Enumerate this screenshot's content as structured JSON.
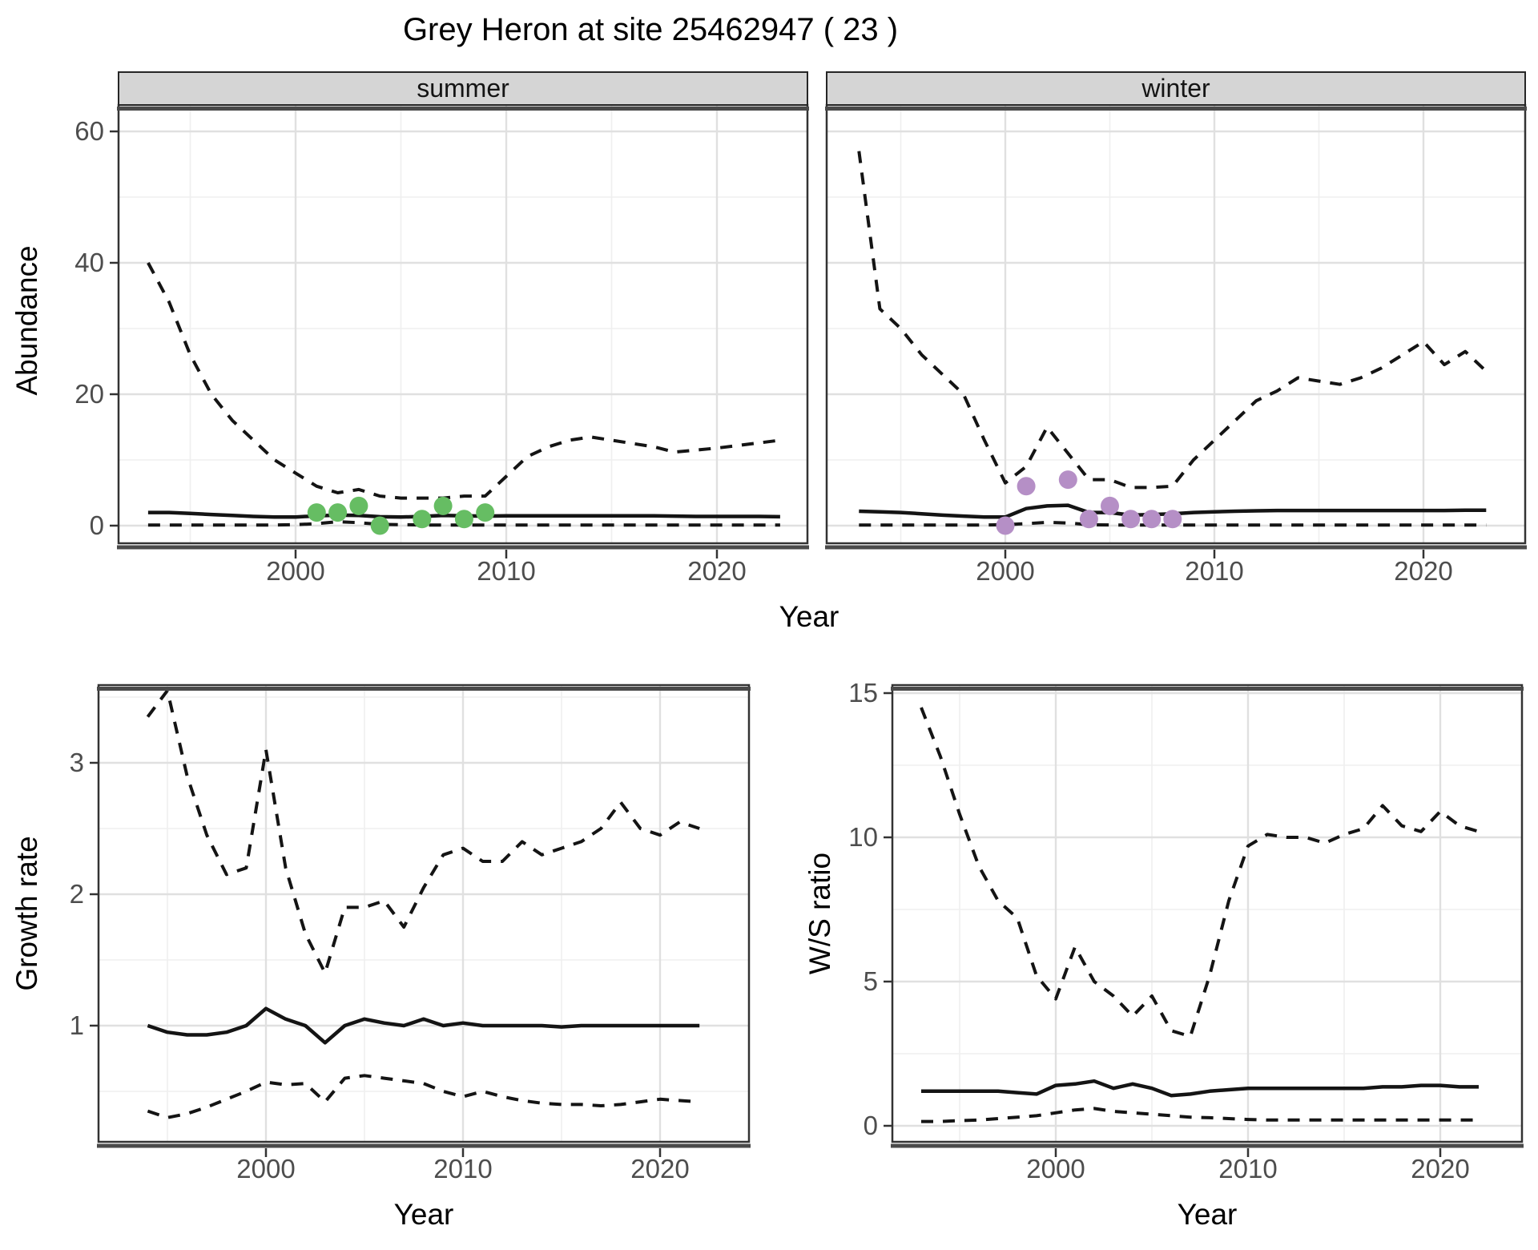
{
  "title": "Grey Heron at site 25462947 ( 23 )",
  "axes": {
    "year_label": "Year",
    "abundance_label": "Abundance",
    "growth_label": "Growth rate",
    "ws_label": "W/S ratio"
  },
  "colors": {
    "line": "#141414",
    "summer_points": "#66bd63",
    "winter_points": "#b58fc6",
    "strip_fill": "#d5d5d5",
    "grid_major": "#e0e0e0",
    "grid_minor": "#efefef"
  },
  "chart_data": [
    {
      "id": "abundance_summer",
      "type": "line",
      "facet_label": "summer",
      "xlabel": "Year",
      "ylabel": "Abundance",
      "x_range": [
        1991.6,
        2024.3
      ],
      "y_range": [
        -1,
        64
      ],
      "grid": true,
      "x_ticks": [
        2000,
        2010,
        2020
      ],
      "x_tick_labels": [
        "2000",
        "2010",
        "2020"
      ],
      "x_minor": [
        1995,
        2005,
        2015
      ],
      "y_ticks": [
        0,
        20,
        40,
        60
      ],
      "y_tick_labels": [
        "0",
        "20",
        "40",
        "60"
      ],
      "y_minor": [
        10,
        30,
        50
      ],
      "x": [
        1993,
        1994,
        1995,
        1996,
        1997,
        1998,
        1999,
        2000,
        2001,
        2002,
        2003,
        2004,
        2005,
        2006,
        2007,
        2008,
        2009,
        2010,
        2011,
        2012,
        2013,
        2014,
        2015,
        2016,
        2017,
        2018,
        2019,
        2020,
        2021,
        2022,
        2023
      ],
      "series": [
        {
          "name": "upper_ci",
          "style": "dashed",
          "y": [
            40,
            34,
            26,
            20,
            16,
            13,
            10,
            8,
            6,
            5,
            5.5,
            4.5,
            4.2,
            4.2,
            4.2,
            4.5,
            4.5,
            7.5,
            10.5,
            12,
            13,
            13.5,
            13,
            12.5,
            12,
            11.2,
            11.5,
            11.8,
            12.2,
            12.6,
            13
          ]
        },
        {
          "name": "estimate",
          "style": "solid",
          "y": [
            2,
            2,
            1.85,
            1.7,
            1.55,
            1.4,
            1.3,
            1.3,
            1.5,
            1.6,
            1.55,
            1.35,
            1.3,
            1.4,
            1.55,
            1.5,
            1.45,
            1.5,
            1.5,
            1.5,
            1.5,
            1.5,
            1.5,
            1.5,
            1.5,
            1.45,
            1.4,
            1.4,
            1.4,
            1.4,
            1.35
          ]
        },
        {
          "name": "lower_ci",
          "style": "dashed",
          "y": [
            0.1,
            0.1,
            0.1,
            0.1,
            0.1,
            0.1,
            0.1,
            0.15,
            0.3,
            0.6,
            0.45,
            0.2,
            0.15,
            0.1,
            0.1,
            0.1,
            0.1,
            0.1,
            0.1,
            0.1,
            0.1,
            0.1,
            0.1,
            0.1,
            0.1,
            0.1,
            0.1,
            0.1,
            0.1,
            0.1,
            0.1
          ]
        }
      ],
      "observations": {
        "name": "counts",
        "color": "#66bd63",
        "x": [
          2001,
          2002,
          2003,
          2004,
          2006,
          2007,
          2008,
          2009
        ],
        "y": [
          2,
          2,
          3,
          0,
          1,
          3,
          1,
          2
        ]
      }
    },
    {
      "id": "abundance_winter",
      "type": "line",
      "facet_label": "winter",
      "xlabel": "Year",
      "ylabel": "Abundance",
      "x_range": [
        1991.6,
        2024.3
      ],
      "y_range": [
        -1,
        64
      ],
      "grid": true,
      "x_ticks": [
        2000,
        2010,
        2020
      ],
      "x_tick_labels": [
        "2000",
        "2010",
        "2020"
      ],
      "x_minor": [
        1995,
        2005,
        2015
      ],
      "y_ticks": [
        0,
        20,
        40,
        60
      ],
      "y_tick_labels": [
        "0",
        "20",
        "40",
        "60"
      ],
      "y_minor": [
        10,
        30,
        50
      ],
      "x": [
        1993,
        1994,
        1995,
        1996,
        1997,
        1998,
        1999,
        2000,
        2001,
        2002,
        2003,
        2004,
        2005,
        2006,
        2007,
        2008,
        2009,
        2010,
        2011,
        2012,
        2013,
        2014,
        2015,
        2016,
        2017,
        2018,
        2019,
        2020,
        2021,
        2022,
        2023
      ],
      "series": [
        {
          "name": "upper_ci",
          "style": "dashed",
          "y": [
            57,
            33,
            30,
            26,
            23,
            20,
            13,
            6.5,
            9,
            15,
            11,
            7,
            7,
            5.8,
            5.8,
            6,
            10,
            13,
            16,
            19,
            20.5,
            22.5,
            22,
            21.5,
            22.5,
            24,
            26,
            28,
            24.5,
            26.5,
            23.5
          ]
        },
        {
          "name": "estimate",
          "style": "solid",
          "y": [
            2.2,
            2.1,
            2,
            1.8,
            1.6,
            1.45,
            1.3,
            1.3,
            2.6,
            3,
            3.1,
            2,
            2,
            1.6,
            1.7,
            1.8,
            2,
            2.1,
            2.2,
            2.25,
            2.3,
            2.3,
            2.3,
            2.3,
            2.3,
            2.3,
            2.3,
            2.3,
            2.3,
            2.35,
            2.35
          ]
        },
        {
          "name": "lower_ci",
          "style": "dashed",
          "y": [
            0.1,
            0.1,
            0.1,
            0.1,
            0.1,
            0.1,
            0.1,
            0.15,
            0.3,
            0.5,
            0.4,
            0.15,
            0.1,
            0.1,
            0.1,
            0.1,
            0.1,
            0.1,
            0.1,
            0.1,
            0.1,
            0.1,
            0.1,
            0.1,
            0.1,
            0.1,
            0.1,
            0.1,
            0.1,
            0.1,
            0.1
          ]
        }
      ],
      "observations": {
        "name": "counts",
        "color": "#b58fc6",
        "x": [
          2000,
          2001,
          2003,
          2004,
          2005,
          2006,
          2007,
          2008
        ],
        "y": [
          0,
          6,
          7,
          1,
          3,
          1,
          1,
          1
        ]
      }
    },
    {
      "id": "growth_rate",
      "type": "line",
      "facet_label": null,
      "xlabel": "Year",
      "ylabel": "Growth rate",
      "x_range": [
        1991.5,
        2024.5
      ],
      "y_range": [
        0.12,
        3.59
      ],
      "grid": true,
      "x_ticks": [
        2000,
        2010,
        2020
      ],
      "x_tick_labels": [
        "2000",
        "2010",
        "2020"
      ],
      "x_minor": [
        1995,
        2005,
        2015
      ],
      "y_ticks": [
        1,
        2,
        3
      ],
      "y_tick_labels": [
        "1",
        "2",
        "3"
      ],
      "y_minor": [
        0.5,
        1.5,
        2.5,
        3.5
      ],
      "x": [
        1994,
        1995,
        1996,
        1997,
        1998,
        1999,
        2000,
        2001,
        2002,
        2003,
        2004,
        2005,
        2006,
        2007,
        2008,
        2009,
        2010,
        2011,
        2012,
        2013,
        2014,
        2015,
        2016,
        2017,
        2018,
        2019,
        2020,
        2021,
        2022
      ],
      "series": [
        {
          "name": "upper_ci",
          "style": "dashed",
          "y": [
            3.35,
            3.55,
            2.9,
            2.45,
            2.15,
            2.2,
            3.1,
            2.2,
            1.7,
            1.4,
            1.9,
            1.9,
            1.95,
            1.75,
            2.05,
            2.3,
            2.35,
            2.25,
            2.25,
            2.4,
            2.3,
            2.35,
            2.4,
            2.5,
            2.7,
            2.5,
            2.45,
            2.55,
            2.5
          ]
        },
        {
          "name": "estimate",
          "style": "solid",
          "y": [
            1,
            0.95,
            0.93,
            0.93,
            0.95,
            1,
            1.13,
            1.05,
            1,
            0.87,
            1,
            1.05,
            1.02,
            1,
            1.05,
            1,
            1.02,
            1,
            1,
            1,
            1,
            0.99,
            1,
            1,
            1,
            1,
            1,
            1,
            1
          ]
        },
        {
          "name": "lower_ci",
          "style": "dashed",
          "y": [
            0.35,
            0.3,
            0.33,
            0.38,
            0.44,
            0.5,
            0.57,
            0.55,
            0.56,
            0.42,
            0.6,
            0.62,
            0.6,
            0.58,
            0.56,
            0.5,
            0.46,
            0.5,
            0.46,
            0.43,
            0.41,
            0.4,
            0.4,
            0.39,
            0.4,
            0.42,
            0.44,
            0.43,
            0.42
          ]
        }
      ],
      "observations": null
    },
    {
      "id": "ws_ratio",
      "type": "line",
      "facet_label": null,
      "xlabel": "Year",
      "ylabel": "W/S ratio",
      "x_range": [
        1991.6,
        2024.4
      ],
      "y_range": [
        -0.55,
        15.3
      ],
      "grid": true,
      "x_ticks": [
        2000,
        2010,
        2020
      ],
      "x_tick_labels": [
        "2000",
        "2010",
        "2020"
      ],
      "x_minor": [
        1995,
        2005,
        2015
      ],
      "y_ticks": [
        0,
        5,
        10,
        15
      ],
      "y_tick_labels": [
        "0",
        "5",
        "10",
        "15"
      ],
      "y_minor": [
        2.5,
        7.5,
        12.5
      ],
      "x": [
        1993,
        1994,
        1995,
        1996,
        1997,
        1998,
        1999,
        2000,
        2001,
        2002,
        2003,
        2004,
        2005,
        2006,
        2007,
        2008,
        2009,
        2010,
        2011,
        2012,
        2013,
        2014,
        2015,
        2016,
        2017,
        2018,
        2019,
        2020,
        2021,
        2022
      ],
      "series": [
        {
          "name": "upper_ci",
          "style": "dashed",
          "y": [
            14.5,
            12.8,
            10.8,
            9,
            7.8,
            7.2,
            5.2,
            4.4,
            6.2,
            5,
            4.5,
            3.8,
            4.5,
            3.3,
            3.1,
            5.2,
            7.8,
            9.7,
            10.1,
            10,
            10,
            9.8,
            10.1,
            10.3,
            11.1,
            10.4,
            10.2,
            10.9,
            10.4,
            10.2
          ]
        },
        {
          "name": "estimate",
          "style": "solid",
          "y": [
            1.2,
            1.2,
            1.2,
            1.2,
            1.2,
            1.15,
            1.1,
            1.4,
            1.45,
            1.55,
            1.3,
            1.45,
            1.3,
            1.05,
            1.1,
            1.2,
            1.25,
            1.3,
            1.3,
            1.3,
            1.3,
            1.3,
            1.3,
            1.3,
            1.35,
            1.35,
            1.4,
            1.4,
            1.35,
            1.35
          ]
        },
        {
          "name": "lower_ci",
          "style": "dashed",
          "y": [
            0.15,
            0.15,
            0.18,
            0.2,
            0.25,
            0.3,
            0.35,
            0.45,
            0.55,
            0.6,
            0.5,
            0.45,
            0.4,
            0.35,
            0.3,
            0.28,
            0.25,
            0.22,
            0.2,
            0.2,
            0.2,
            0.2,
            0.2,
            0.2,
            0.2,
            0.2,
            0.2,
            0.2,
            0.2,
            0.2
          ]
        }
      ],
      "observations": null
    }
  ]
}
